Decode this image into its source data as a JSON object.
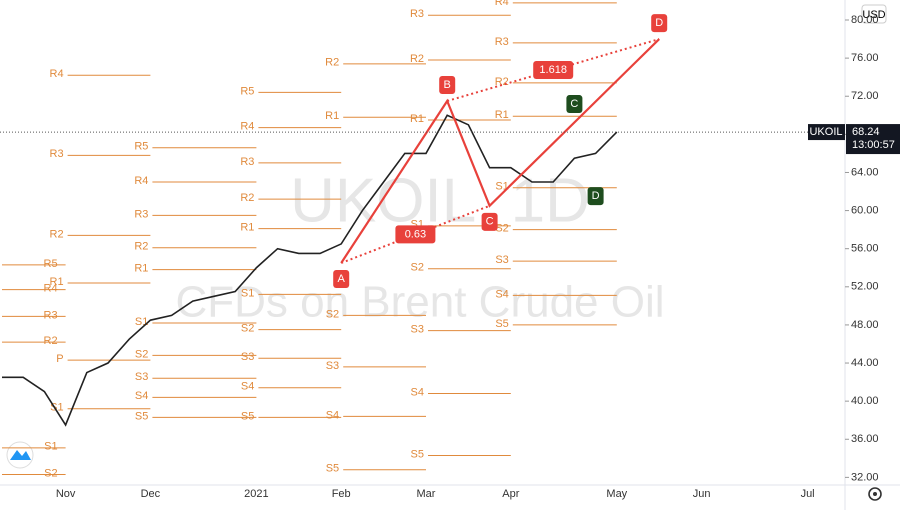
{
  "chart_data": {
    "type": "line",
    "watermark": "UKOIL, 1D",
    "watermark_subtitle": "CFDs on Brent Crude Oil",
    "currency": "USD",
    "symbol": "UKOIL",
    "last_price": {
      "value": 68.24,
      "label": "68.24"
    },
    "countdown": "13:00:57",
    "categories": [
      null,
      null,
      null,
      "Nov",
      null,
      null,
      null,
      "Dec",
      null,
      null,
      null,
      null,
      "2021",
      null,
      null,
      null,
      "Feb",
      null,
      null,
      null,
      "Mar",
      null,
      null,
      null,
      "Apr",
      null,
      null,
      null,
      null,
      "May",
      null,
      null,
      null,
      "Jun",
      null,
      null,
      null,
      null,
      "Jul",
      null
    ],
    "series": [
      {
        "name": "UKOIL",
        "color": "#222222",
        "values": [
          42.5,
          42.5,
          41,
          37.5,
          43,
          44,
          46.5,
          48.5,
          49,
          50.5,
          51,
          51.5,
          54,
          56,
          55.5,
          55.5,
          56.5,
          60,
          63,
          66,
          66,
          70,
          69,
          64.5,
          64.5,
          63,
          63,
          65.5,
          66,
          68.24,
          null,
          null,
          null,
          null,
          null,
          null,
          null,
          null,
          null,
          null
        ]
      }
    ],
    "ylim": [
      31.2,
      82.1
    ],
    "yticks": [
      {
        "value": 32,
        "label": "32.00"
      },
      {
        "value": 36,
        "label": "36.00"
      },
      {
        "value": 40,
        "label": "40.00"
      },
      {
        "value": 44,
        "label": "44.00"
      },
      {
        "value": 48,
        "label": "48.00"
      },
      {
        "value": 52,
        "label": "52.00"
      },
      {
        "value": 56,
        "label": "56.00"
      },
      {
        "value": 60,
        "label": "60.00"
      },
      {
        "value": 64,
        "label": "64.00"
      },
      {
        "value": 68,
        "label": "68.00"
      },
      {
        "value": 72,
        "label": "72.00"
      },
      {
        "value": 76,
        "label": "76.00"
      },
      {
        "value": 80,
        "label": "80.00"
      }
    ],
    "pivot_color": "#e08a3c",
    "pivots": [
      {
        "levels": [
          {
            "label": "R5",
            "value": 54.3
          },
          {
            "label": "R4",
            "value": 51.7
          },
          {
            "label": "R3",
            "value": 48.9
          },
          {
            "label": "R2",
            "value": 46.2
          },
          {
            "label": "S1",
            "value": 35.1
          },
          {
            "label": "S2",
            "value": 32.3
          }
        ]
      },
      {
        "levels": [
          {
            "label": "R4",
            "value": 74.2
          },
          {
            "label": "R3",
            "value": 65.8
          },
          {
            "label": "R2",
            "value": 57.4
          },
          {
            "label": "R1",
            "value": 52.4
          },
          {
            "label": "P",
            "value": 44.3
          },
          {
            "label": "S1",
            "value": 39.2
          }
        ]
      },
      {
        "levels": [
          {
            "label": "R5",
            "value": 66.6
          },
          {
            "label": "R4",
            "value": 63.0
          },
          {
            "label": "R3",
            "value": 59.5
          },
          {
            "label": "R2",
            "value": 56.1
          },
          {
            "label": "R1",
            "value": 53.8
          },
          {
            "label": "S1",
            "value": 48.2
          },
          {
            "label": "S2",
            "value": 44.8
          },
          {
            "label": "S3",
            "value": 42.4
          },
          {
            "label": "S4",
            "value": 40.4
          },
          {
            "label": "S5",
            "value": 38.3
          }
        ]
      },
      {
        "levels": [
          {
            "label": "R5",
            "value": 72.4
          },
          {
            "label": "R4",
            "value": 68.7
          },
          {
            "label": "R3",
            "value": 65.0
          },
          {
            "label": "R2",
            "value": 61.2
          },
          {
            "label": "R1",
            "value": 58.1
          },
          {
            "label": "S1",
            "value": 51.2
          },
          {
            "label": "S2",
            "value": 47.5
          },
          {
            "label": "S3",
            "value": 44.5
          },
          {
            "label": "S4",
            "value": 41.4
          },
          {
            "label": "S5",
            "value": 38.3
          }
        ]
      },
      {
        "levels": [
          {
            "label": "R2",
            "value": 75.4
          },
          {
            "label": "R1",
            "value": 69.8
          },
          {
            "label": "S2",
            "value": 49.0
          },
          {
            "label": "S3",
            "value": 43.6
          },
          {
            "label": "S4",
            "value": 38.4
          },
          {
            "label": "S5",
            "value": 32.8
          }
        ]
      },
      {
        "levels": [
          {
            "label": "R3",
            "value": 80.5
          },
          {
            "label": "R2",
            "value": 75.8
          },
          {
            "label": "R1",
            "value": 69.5
          },
          {
            "label": "S1",
            "value": 58.4
          },
          {
            "label": "S2",
            "value": 53.9
          },
          {
            "label": "S3",
            "value": 47.4
          },
          {
            "label": "S4",
            "value": 40.8
          },
          {
            "label": "S5",
            "value": 34.3
          }
        ]
      },
      {
        "levels": [
          {
            "label": "R4",
            "value": 81.8
          },
          {
            "label": "R3",
            "value": 77.6
          },
          {
            "label": "R2",
            "value": 73.4
          },
          {
            "label": "R1",
            "value": 69.9
          },
          {
            "label": "S1",
            "value": 62.4
          },
          {
            "label": "S2",
            "value": 58.0
          },
          {
            "label": "S3",
            "value": 54.7
          },
          {
            "label": "S4",
            "value": 51.1
          },
          {
            "label": "S5",
            "value": 48.0
          }
        ]
      }
    ],
    "pattern": {
      "color": "#e8413b",
      "values": [
        null,
        null,
        null,
        null,
        null,
        null,
        null,
        null,
        null,
        null,
        null,
        null,
        null,
        null,
        null,
        null,
        54.5,
        null,
        null,
        null,
        null,
        71.5,
        null,
        60.5,
        null,
        null,
        null,
        null,
        null,
        null,
        null,
        78,
        null,
        null,
        null,
        null,
        null,
        null,
        null,
        null
      ],
      "point_labels": [
        null,
        null,
        null,
        null,
        null,
        null,
        null,
        null,
        null,
        null,
        null,
        null,
        null,
        null,
        null,
        null,
        "A",
        null,
        null,
        null,
        null,
        "B",
        null,
        "C",
        null,
        null,
        null,
        null,
        null,
        null,
        null,
        "D",
        null,
        null,
        null,
        null,
        null,
        null,
        null,
        null
      ],
      "ratio_ac": 0.63,
      "ratio_bd": 1.618
    },
    "pattern2": {
      "color": "#1e4d1e",
      "values": [
        null,
        null,
        null,
        null,
        null,
        null,
        null,
        null,
        null,
        null,
        null,
        null,
        null,
        null,
        null,
        null,
        null,
        null,
        null,
        null,
        null,
        null,
        null,
        null,
        null,
        null,
        null,
        69.5,
        63.2,
        null,
        null,
        null,
        null,
        null,
        null,
        null,
        null,
        null,
        null,
        null
      ],
      "point_labels": [
        null,
        null,
        null,
        null,
        null,
        null,
        null,
        null,
        null,
        null,
        null,
        null,
        null,
        null,
        null,
        null,
        null,
        null,
        null,
        null,
        null,
        null,
        null,
        null,
        null,
        null,
        null,
        "C",
        "D",
        null,
        null,
        null,
        null,
        null,
        null,
        null,
        null,
        null,
        null,
        null
      ]
    }
  }
}
